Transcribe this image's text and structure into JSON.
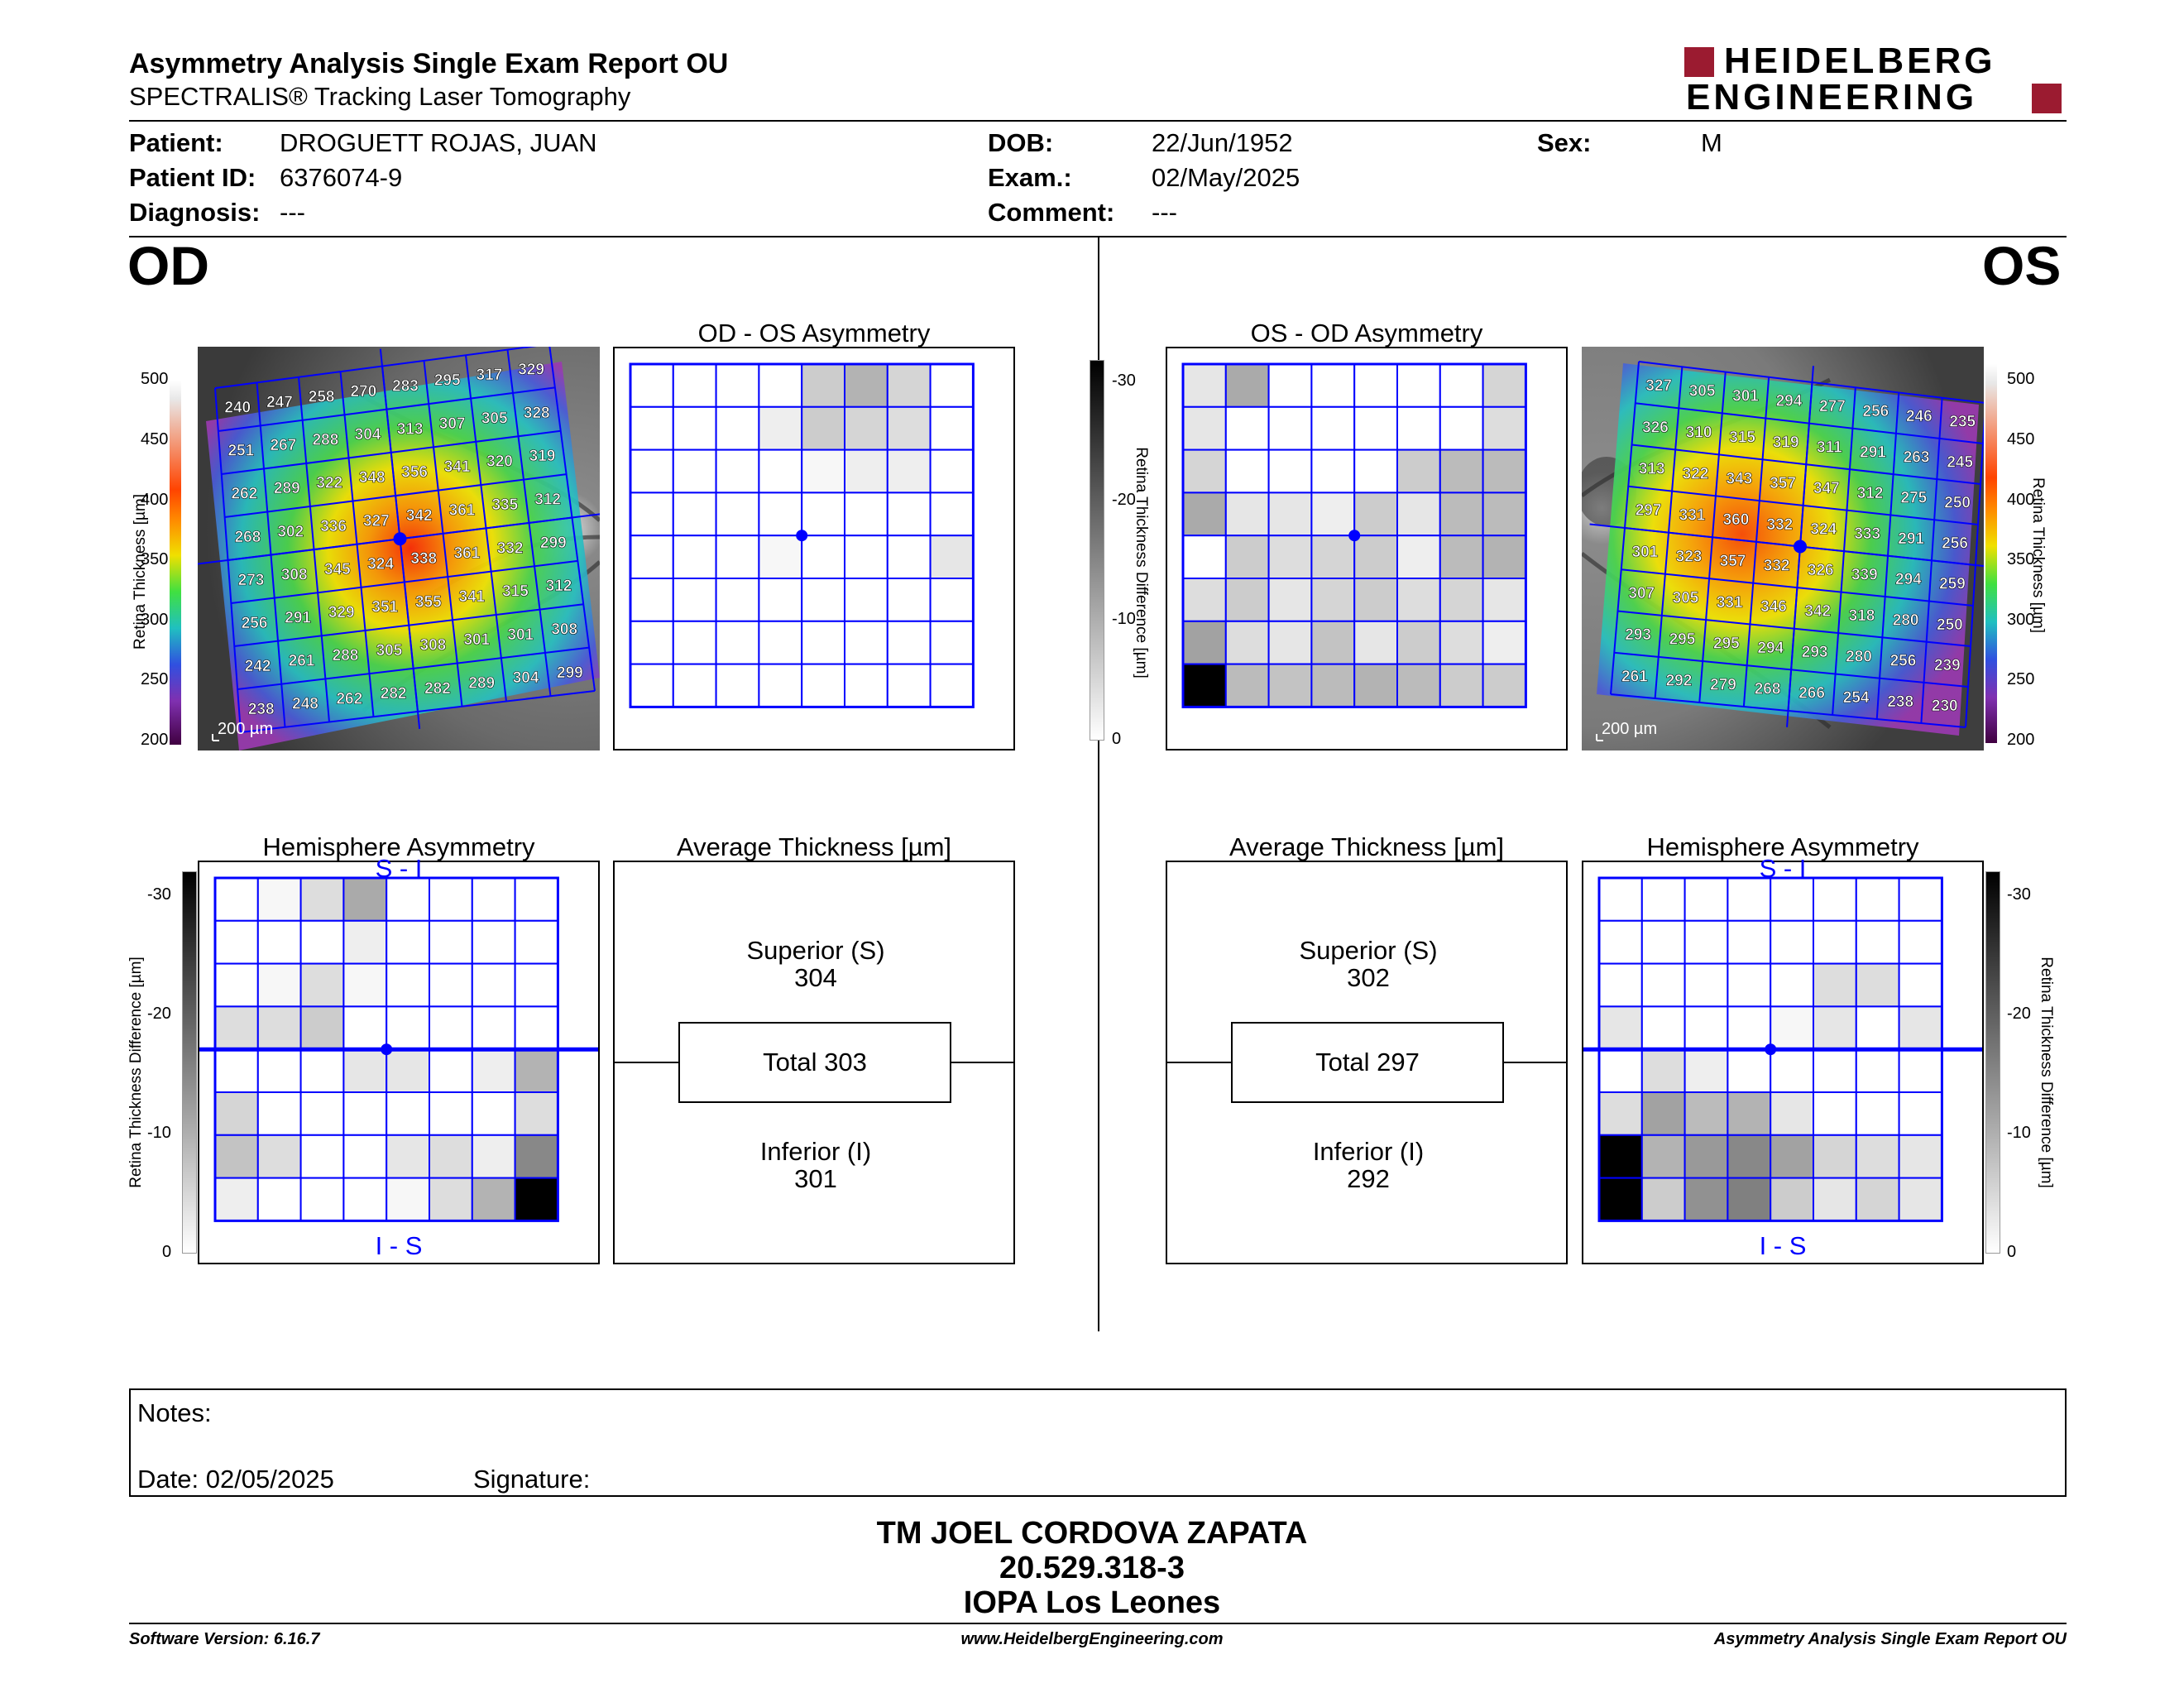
{
  "header": {
    "title": "Asymmetry Analysis Single Exam Report OU",
    "subtitle": "SPECTRALIS® Tracking Laser Tomography",
    "logo_line1": "HEIDELBERG",
    "logo_line2": "ENGINEERING"
  },
  "patient": {
    "patient_label": "Patient:",
    "patient_value": "DROGUETT ROJAS, JUAN",
    "id_label": "Patient ID:",
    "id_value": "6376074-9",
    "diagnosis_label": "Diagnosis:",
    "diagnosis_value": "---",
    "dob_label": "DOB:",
    "dob_value": "22/Jun/1952",
    "exam_label": "Exam.:",
    "exam_value": "02/May/2025",
    "comment_label": "Comment:",
    "comment_value": "---",
    "sex_label": "Sex:",
    "sex_value": "M"
  },
  "eyes": {
    "left": "OD",
    "right": "OS"
  },
  "panel_titles": {
    "od_os": "OD - OS Asymmetry",
    "os_od": "OS - OD Asymmetry",
    "hemi": "Hemisphere Asymmetry",
    "avg": "Average Thickness [µm]"
  },
  "axis_labels": {
    "thickness": "Retina Thickness [µm]",
    "difference": "Retina Thickness Difference [µm]",
    "scale_bar": "200 µm",
    "hemi_top": "S - I",
    "hemi_bottom": "I - S"
  },
  "thickness_ticks": [
    "500",
    "450",
    "400",
    "350",
    "300",
    "250",
    "200"
  ],
  "difference_ticks": [
    "-30",
    "-20",
    "-10",
    "0"
  ],
  "average": {
    "od": {
      "superior_label": "Superior (S)",
      "superior": "304",
      "total": "Total 303",
      "inferior_label": "Inferior (I)",
      "inferior": "301"
    },
    "os": {
      "superior_label": "Superior (S)",
      "superior": "302",
      "total": "Total 297",
      "inferior_label": "Inferior (I)",
      "inferior": "292"
    }
  },
  "od_thickness_grid": [
    [
      "240",
      "247",
      "258",
      "270",
      "283",
      "295",
      "317",
      "329"
    ],
    [
      "251",
      "267",
      "288",
      "304",
      "313",
      "307",
      "305",
      "328"
    ],
    [
      "262",
      "289",
      "322",
      "348",
      "356",
      "341",
      "320",
      "319"
    ],
    [
      "268",
      "302",
      "336",
      "327",
      "342",
      "361",
      "335",
      "312"
    ],
    [
      "273",
      "308",
      "345",
      "324",
      "338",
      "361",
      "332",
      "299"
    ],
    [
      "256",
      "291",
      "329",
      "351",
      "355",
      "341",
      "315",
      "312"
    ],
    [
      "242",
      "261",
      "288",
      "305",
      "308",
      "301",
      "301",
      "308"
    ],
    [
      "238",
      "248",
      "262",
      "282",
      "282",
      "289",
      "304",
      "299"
    ]
  ],
  "os_thickness_grid": [
    [
      "327",
      "305",
      "301",
      "294",
      "277",
      "256",
      "246",
      "235"
    ],
    [
      "326",
      "310",
      "315",
      "319",
      "311",
      "291",
      "263",
      "245"
    ],
    [
      "313",
      "322",
      "343",
      "357",
      "347",
      "312",
      "275",
      "250"
    ],
    [
      "297",
      "331",
      "360",
      "332",
      "324",
      "333",
      "291",
      "256"
    ],
    [
      "301",
      "323",
      "357",
      "332",
      "326",
      "339",
      "294",
      "259"
    ],
    [
      "307",
      "305",
      "331",
      "346",
      "342",
      "318",
      "280",
      "250"
    ],
    [
      "293",
      "295",
      "295",
      "294",
      "293",
      "280",
      "256",
      "239"
    ],
    [
      "261",
      "292",
      "279",
      "268",
      "266",
      "254",
      "238",
      "230"
    ]
  ],
  "od_os_asym_grid": [
    [
      0,
      0,
      0,
      0,
      6,
      9,
      5,
      0
    ],
    [
      0,
      0,
      0,
      2,
      6,
      5,
      4,
      0
    ],
    [
      0,
      0,
      0,
      0,
      1,
      2,
      2,
      0
    ],
    [
      0,
      0,
      0,
      0,
      0,
      0,
      0,
      0
    ],
    [
      0,
      0,
      0,
      1,
      0,
      0,
      0,
      3
    ],
    [
      0,
      0,
      0,
      0,
      0,
      0,
      0,
      0
    ],
    [
      0,
      0,
      0,
      0,
      0,
      0,
      0,
      0
    ],
    [
      0,
      0,
      0,
      0,
      0,
      0,
      0,
      0
    ]
  ],
  "os_od_asym_grid": [
    [
      3,
      10,
      0,
      0,
      0,
      0,
      0,
      5
    ],
    [
      3,
      0,
      0,
      0,
      0,
      0,
      0,
      4
    ],
    [
      5,
      0,
      0,
      0,
      0,
      6,
      8,
      8
    ],
    [
      10,
      3,
      3,
      2,
      6,
      3,
      8,
      8
    ],
    [
      0,
      6,
      4,
      5,
      6,
      2,
      8,
      9
    ],
    [
      4,
      6,
      3,
      5,
      6,
      4,
      5,
      3
    ],
    [
      11,
      4,
      3,
      7,
      3,
      6,
      4,
      2
    ],
    [
      30,
      8,
      7,
      8,
      9,
      8,
      6,
      6
    ]
  ],
  "od_hemi_grid": [
    [
      0,
      1,
      4,
      10,
      0,
      0,
      0,
      0
    ],
    [
      0,
      0,
      0,
      2,
      0,
      0,
      0,
      0
    ],
    [
      0,
      1,
      4,
      1,
      0,
      0,
      0,
      0
    ],
    [
      4,
      4,
      6,
      0,
      0,
      0,
      0,
      0
    ],
    [
      0,
      0,
      0,
      3,
      3,
      0,
      2,
      9
    ],
    [
      5,
      0,
      0,
      0,
      0,
      0,
      0,
      4
    ],
    [
      7,
      4,
      0,
      0,
      3,
      4,
      2,
      14
    ],
    [
      2,
      0,
      0,
      0,
      1,
      4,
      9,
      30
    ]
  ],
  "os_hemi_grid": [
    [
      0,
      0,
      0,
      0,
      0,
      0,
      0,
      0
    ],
    [
      0,
      0,
      0,
      0,
      0,
      0,
      0,
      0
    ],
    [
      0,
      0,
      0,
      0,
      0,
      4,
      4,
      0
    ],
    [
      3,
      0,
      0,
      0,
      1,
      3,
      0,
      3
    ],
    [
      0,
      4,
      2,
      0,
      0,
      0,
      0,
      0
    ],
    [
      4,
      11,
      8,
      9,
      3,
      0,
      0,
      0
    ],
    [
      30,
      9,
      12,
      14,
      11,
      5,
      4,
      3
    ],
    [
      30,
      6,
      13,
      15,
      6,
      3,
      5,
      3
    ]
  ],
  "notes": {
    "notes_label": "Notes:",
    "date_label": "Date: 02/05/2025",
    "signature_label": "Signature:"
  },
  "operator": {
    "name": "TM JOEL CORDOVA ZAPATA",
    "id": "20.529.318-3",
    "clinic": "IOPA Los Leones"
  },
  "footer": {
    "version": "Software Version: 6.16.7",
    "website": "www.HeidelbergEngineering.com",
    "report": "Asymmetry Analysis Single Exam Report OU"
  },
  "colors": {
    "grid_blue": "#0000ff",
    "logo_red": "#9b1b30"
  }
}
